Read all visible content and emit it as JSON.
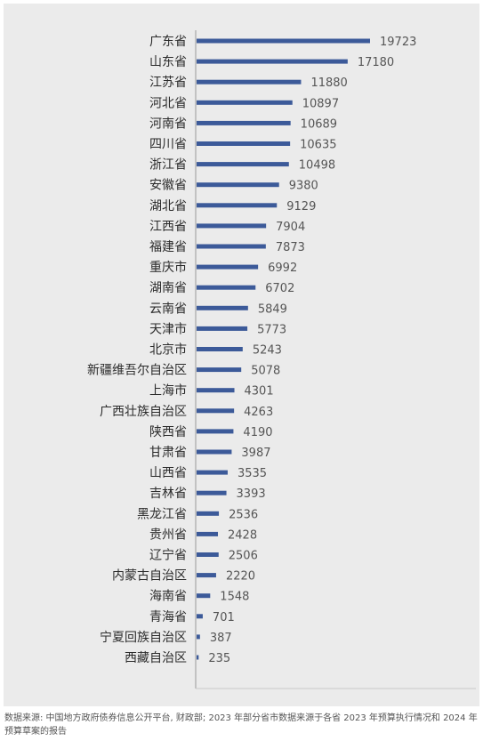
{
  "chart_data": {
    "type": "bar",
    "orientation": "horizontal",
    "categories": [
      "广东省",
      "山东省",
      "江苏省",
      "河北省",
      "河南省",
      "四川省",
      "浙江省",
      "安徽省",
      "湖北省",
      "江西省",
      "福建省",
      "重庆市",
      "湖南省",
      "云南省",
      "天津市",
      "北京市",
      "新疆维吾尔自治区",
      "上海市",
      "广西壮族自治区",
      "陕西省",
      "甘肃省",
      "山西省",
      "吉林省",
      "黑龙江省",
      "贵州省",
      "辽宁省",
      "内蒙古自治区",
      "海南省",
      "青海省",
      "宁夏回族自治区",
      "西藏自治区"
    ],
    "values": [
      19723,
      17180,
      11880,
      10897,
      10689,
      10635,
      10498,
      9380,
      9129,
      7904,
      7873,
      6992,
      6702,
      5849,
      5773,
      5243,
      5078,
      4301,
      4263,
      4190,
      3987,
      3535,
      3393,
      2536,
      2428,
      2506,
      2220,
      1548,
      701,
      387,
      235
    ],
    "bar_color": "#3c5a99",
    "grid": false,
    "legend": "none"
  },
  "source_note": "数据来源: 中国地方政府债券信息公开平台, 财政部; 2023 年部分省市数据来源于各省 2023 年预算执行情况和 2024 年预算草案的报告"
}
